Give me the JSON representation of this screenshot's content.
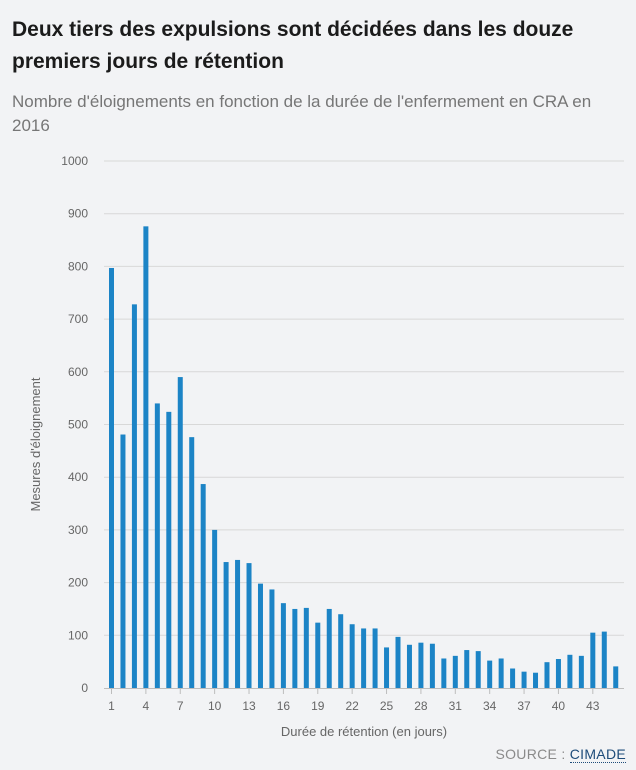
{
  "header": {
    "title": "Deux tiers des expulsions sont décidées dans les douze premiers jours de rétention",
    "subtitle": "Nombre d'éloignements en fonction de la durée de l'enfermement en CRA en 2016"
  },
  "footer": {
    "source_label": "SOURCE :",
    "source_link": "CIMADE"
  },
  "colors": {
    "bar": "#1c84c6",
    "grid": "#d8d8d8",
    "axis_text": "#666666"
  },
  "chart_data": {
    "type": "bar",
    "title": "Deux tiers des expulsions sont décidées dans les douze premiers jours de rétention",
    "subtitle": "Nombre d'éloignements en fonction de la durée de l'enfermement en CRA en 2016",
    "xlabel": "Durée de rétention (en jours)",
    "ylabel": "Mesures d'éloignement",
    "ylim": [
      0,
      1000
    ],
    "yticks": [
      0,
      100,
      200,
      300,
      400,
      500,
      600,
      700,
      800,
      900,
      1000
    ],
    "xticks": [
      1,
      4,
      7,
      10,
      13,
      16,
      19,
      22,
      25,
      28,
      31,
      34,
      37,
      40,
      43
    ],
    "grid": true,
    "categories": [
      1,
      2,
      3,
      4,
      5,
      6,
      7,
      8,
      9,
      10,
      11,
      12,
      13,
      14,
      15,
      16,
      17,
      18,
      19,
      20,
      21,
      22,
      23,
      24,
      25,
      26,
      27,
      28,
      29,
      30,
      31,
      32,
      33,
      34,
      35,
      36,
      37,
      38,
      39,
      40,
      41,
      42,
      43,
      44,
      45
    ],
    "values": [
      797,
      481,
      728,
      876,
      540,
      524,
      590,
      476,
      387,
      300,
      239,
      243,
      237,
      198,
      187,
      161,
      150,
      152,
      124,
      150,
      140,
      121,
      113,
      113,
      77,
      97,
      82,
      86,
      84,
      56,
      61,
      72,
      70,
      52,
      56,
      37,
      31,
      29,
      49,
      55,
      63,
      61,
      105,
      107,
      41
    ]
  }
}
